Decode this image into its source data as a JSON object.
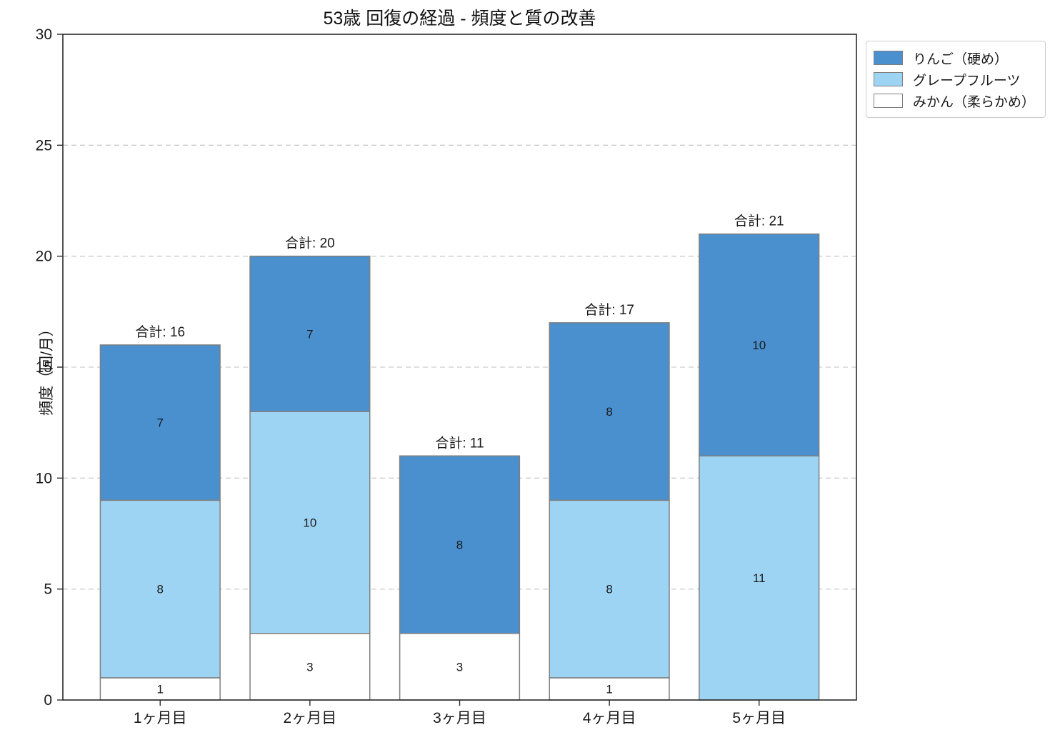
{
  "chart_data": {
    "type": "bar",
    "stacked": true,
    "title": "53歳 回復の経過 - 頻度と質の改善",
    "xlabel": "",
    "ylabel": "頻度（回/月）",
    "categories": [
      "1ヶ月目",
      "2ヶ月目",
      "3ヶ月目",
      "4ヶ月目",
      "5ヶ月目"
    ],
    "series": [
      {
        "name": "みかん（柔らかめ）",
        "color": "#ffffff",
        "values": [
          1,
          3,
          3,
          1,
          0
        ]
      },
      {
        "name": "グレープフルーツ",
        "color": "#9dd4f4",
        "values": [
          8,
          10,
          0,
          8,
          11
        ]
      },
      {
        "name": "りんご（硬め）",
        "color": "#4a90ce",
        "values": [
          7,
          7,
          8,
          8,
          10
        ]
      }
    ],
    "totals": [
      16,
      20,
      11,
      17,
      21
    ],
    "total_label_prefix": "合計: ",
    "ylim": [
      0,
      30
    ],
    "yticks": [
      0,
      5,
      10,
      15,
      20,
      25,
      30
    ],
    "grid": "horizontal dashed",
    "legend_position": "upper right outside plot",
    "legend_entries": [
      "りんご（硬め）",
      "グレープフルーツ",
      "みかん（柔らかめ）"
    ],
    "colors": {
      "bar_edge": "#7f7f7f",
      "gridline": "#cccccc",
      "spine": "#2a2a2a",
      "text": "#1a1a1a"
    }
  }
}
